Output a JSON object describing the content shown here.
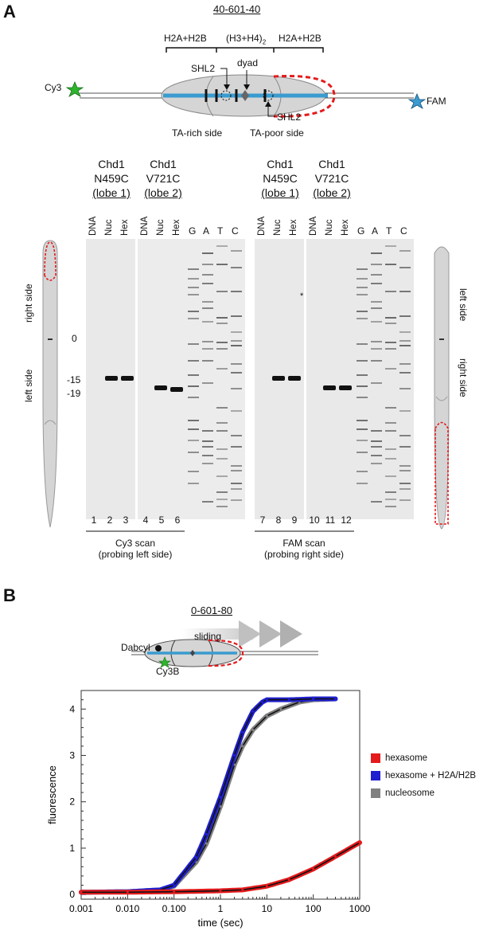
{
  "panel_a": {
    "letter": "A",
    "construct": "40-601-40",
    "domains": [
      "H2A+H2B",
      "(H3+H4)",
      "H2A+H2B"
    ],
    "domain_subscript": "2",
    "labels": {
      "cy3": "Cy3",
      "fam": "FAM",
      "shl2_left": "SHL2",
      "dyad": "dyad",
      "shl2_right": "SHL2",
      "ta_rich": "TA-rich side",
      "ta_poor": "TA-poor side"
    },
    "groups": [
      {
        "line1": "Chd1",
        "line2": "N459C",
        "line3": "(lobe 1)"
      },
      {
        "line1": "Chd1",
        "line2": "V721C",
        "line3": "(lobe 2)"
      },
      {
        "line1": "Chd1",
        "line2": "N459C",
        "line3": "(lobe 1)"
      },
      {
        "line1": "Chd1",
        "line2": "V721C",
        "line3": "(lobe 2)"
      }
    ],
    "lane_headers": [
      "DNA",
      "Nuc",
      "Hex",
      "DNA",
      "Nuc",
      "Hex",
      "DNA",
      "Nuc",
      "Hex",
      "DNA",
      "Nuc",
      "Hex"
    ],
    "ladder_letters": [
      "G",
      "A",
      "T",
      "C",
      "G",
      "A",
      "T",
      "C"
    ],
    "lane_numbers": [
      "1",
      "2",
      "3",
      "4",
      "5",
      "6",
      "7",
      "8",
      "9",
      "10",
      "11",
      "12"
    ],
    "positions": {
      "zero": "0",
      "m15": "-15",
      "m19": "-19"
    },
    "side_left": {
      "top": "right side",
      "bottom": "left side"
    },
    "side_right": {
      "top": "left side",
      "bottom": "right side"
    },
    "asterisk": "*",
    "scan_left": {
      "line1": "Cy3 scan",
      "line2": "(probing left side)"
    },
    "scan_right": {
      "line1": "FAM scan",
      "line2": "(probing right side)"
    }
  },
  "panel_b": {
    "letter": "B",
    "construct": "0-601-80",
    "labels": {
      "sliding": "sliding",
      "dabcyl": "Dabcyl",
      "cy3b": "Cy3B"
    },
    "legend": [
      {
        "label": "hexasome",
        "color": "#e41a1c"
      },
      {
        "label": "hexasome + H2A/H2B",
        "color": "#1f1fd0"
      },
      {
        "label": "nucleosome",
        "color": "#808080"
      }
    ]
  },
  "chart_data": {
    "type": "line",
    "xlabel": "time (sec)",
    "ylabel": "fluorescence",
    "x_scale": "log",
    "xlim": [
      0.001,
      1000
    ],
    "ylim": [
      -0.1,
      4.4
    ],
    "xticks": [
      "0.001",
      "0.010",
      "0.100",
      "1",
      "10",
      "100",
      "1000"
    ],
    "yticks": [
      "0",
      "1",
      "2",
      "3",
      "4"
    ],
    "series": [
      {
        "name": "hexasome",
        "color": "#e41a1c",
        "x": [
          0.001,
          0.01,
          0.1,
          1,
          3,
          10,
          30,
          100,
          300,
          1000
        ],
        "y": [
          0.05,
          0.05,
          0.06,
          0.08,
          0.1,
          0.18,
          0.32,
          0.55,
          0.82,
          1.12
        ]
      },
      {
        "name": "hexasome + H2A/H2B",
        "color": "#1f1fd0",
        "x": [
          0.001,
          0.01,
          0.05,
          0.1,
          0.3,
          0.5,
          1,
          2,
          3,
          5,
          8,
          10,
          30,
          100,
          300
        ],
        "y": [
          0.05,
          0.06,
          0.1,
          0.2,
          0.8,
          1.3,
          2.1,
          3.0,
          3.5,
          3.95,
          4.15,
          4.2,
          4.2,
          4.22,
          4.22
        ]
      },
      {
        "name": "nucleosome",
        "color": "#808080",
        "x": [
          0.001,
          0.01,
          0.05,
          0.1,
          0.3,
          0.5,
          1,
          2,
          3,
          5,
          10,
          20,
          50,
          100,
          300
        ],
        "y": [
          0.05,
          0.06,
          0.1,
          0.18,
          0.7,
          1.1,
          1.9,
          2.8,
          3.2,
          3.55,
          3.85,
          4.0,
          4.15,
          4.2,
          4.22
        ]
      }
    ]
  }
}
